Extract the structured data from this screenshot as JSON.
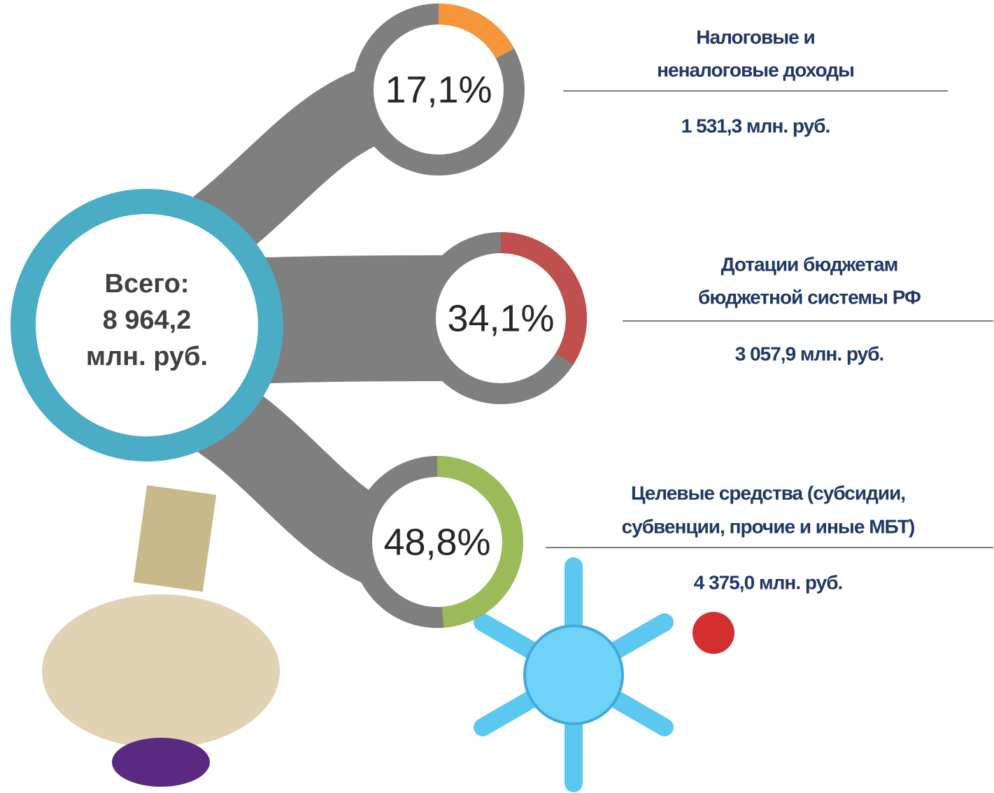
{
  "center": [
    "Всего:",
    "8 964,2",
    "млн. руб."
  ],
  "items": [
    {
      "percent": {
        "value": 17.1,
        "label": "17,1%"
      },
      "color": "#f7953b",
      "title": [
        "Налоговые и",
        "неналоговые доходы"
      ],
      "amount": "1 531,3 млн. руб."
    },
    {
      "percent": {
        "value": 34.1,
        "label": "34,1%"
      },
      "color": "#c0504d",
      "title": [
        "Дотации бюджетам",
        "бюджетной системы РФ"
      ],
      "amount": "3 057,9 млн. руб."
    },
    {
      "percent": {
        "value": 48.8,
        "label": "48,8%"
      },
      "color": "#9bbb59",
      "title": [
        "Целевые средства (субсидии,",
        "субвенции, прочие и иные МБТ)"
      ],
      "amount": "4 375,0 млн. руб."
    }
  ]
}
